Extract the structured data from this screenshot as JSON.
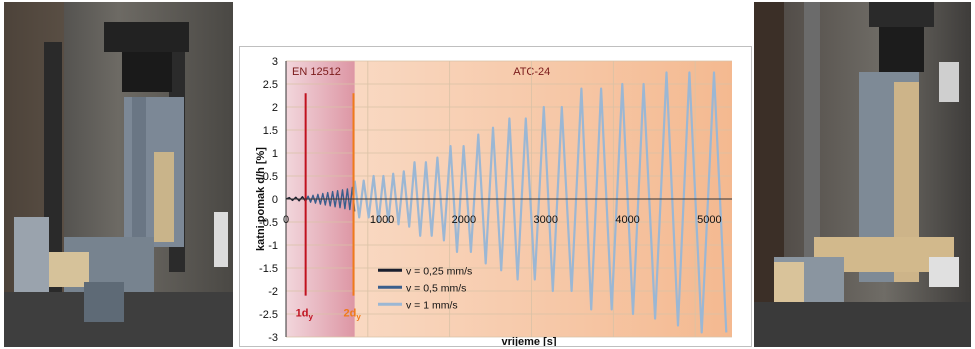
{
  "chart_data": {
    "type": "line",
    "title": "",
    "xlabel": "vrijeme [s]",
    "ylabel": "katni pomak d/h [%]",
    "xlim": [
      0,
      5450
    ],
    "ylim": [
      -3,
      3
    ],
    "x_ticks": [
      0,
      1000,
      2000,
      3000,
      4000,
      5000
    ],
    "y_ticks": [
      -3,
      -2.5,
      -2,
      -1.5,
      -1,
      -0.5,
      0,
      0.5,
      1,
      1.5,
      2,
      2.5,
      3
    ],
    "grid": true,
    "legend_position": "bottom-left",
    "regions": [
      {
        "label": "EN 12512",
        "x_start": 0,
        "x_end": 840,
        "color": "#d98a9a"
      },
      {
        "label": "ATC-24",
        "x_start": 840,
        "x_end": 5450,
        "color": "#f4b990"
      }
    ],
    "markers": [
      {
        "label": "1d",
        "subscript": "y",
        "x": 240,
        "color": "#c0121f"
      },
      {
        "label": "2d",
        "subscript": "y",
        "x": 825,
        "color": "#f07a1a"
      }
    ],
    "series": [
      {
        "name": "v = 0,25 mm/s",
        "color": "#1a1f2e",
        "x": [
          0,
          40,
          80,
          120,
          160,
          200,
          240
        ],
        "y": [
          0,
          0.03,
          -0.03,
          0.04,
          -0.04,
          0.05,
          -0.05
        ]
      },
      {
        "name": "v = 0,5 mm/s",
        "color": "#3a5e8c",
        "x": [
          240,
          270,
          300,
          330,
          360,
          390,
          420,
          450,
          480,
          510,
          540,
          570,
          600,
          630,
          660,
          690,
          720,
          750,
          780,
          810,
          840
        ],
        "y": [
          -0.05,
          0.06,
          -0.07,
          0.08,
          -0.09,
          0.1,
          -0.11,
          0.12,
          -0.13,
          0.14,
          -0.15,
          0.16,
          -0.17,
          0.18,
          -0.19,
          0.2,
          -0.21,
          0.22,
          -0.23,
          0.25,
          -0.27
        ]
      },
      {
        "name": "v = 1 mm/s",
        "color": "#9bb7d4",
        "x": [
          840,
          895,
          950,
          1010,
          1070,
          1130,
          1190,
          1250,
          1310,
          1375,
          1440,
          1505,
          1570,
          1640,
          1710,
          1780,
          1850,
          1930,
          2010,
          2090,
          2170,
          2260,
          2350,
          2440,
          2530,
          2630,
          2730,
          2830,
          2930,
          3040,
          3150,
          3260,
          3370,
          3490,
          3610,
          3730,
          3850,
          3980,
          4110,
          4240,
          4370,
          4510,
          4650,
          4790,
          4930,
          5080,
          5230,
          5380
        ],
        "y": [
          0.4,
          -0.4,
          0.4,
          -0.4,
          0.5,
          -0.5,
          0.5,
          -0.5,
          0.55,
          -0.55,
          0.6,
          -0.6,
          0.8,
          -0.8,
          0.8,
          -0.8,
          0.9,
          -0.9,
          1.15,
          -1.15,
          1.15,
          -1.15,
          1.4,
          -1.4,
          1.55,
          -1.55,
          1.75,
          -1.75,
          1.75,
          -1.75,
          2.0,
          -2.0,
          2.0,
          -2.0,
          2.4,
          -2.4,
          2.4,
          -2.4,
          2.5,
          -2.5,
          2.5,
          -2.6,
          2.75,
          -2.75,
          2.75,
          -2.9,
          2.75,
          -2.9
        ]
      }
    ]
  }
}
